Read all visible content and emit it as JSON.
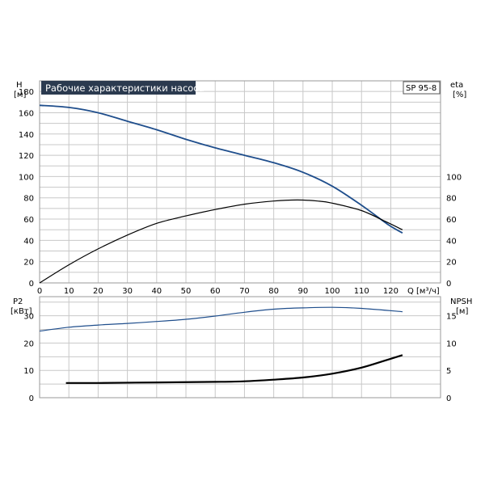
{
  "chart_data": [
    {
      "type": "line",
      "title": "Рабочие характеристики насоса",
      "model": "SP 95-8",
      "left_axis": {
        "label": "H",
        "unit": "[м]",
        "ticks": [
          0,
          20,
          40,
          60,
          80,
          100,
          120,
          140,
          160,
          180
        ],
        "ylim": [
          0,
          190
        ]
      },
      "right_axis": {
        "label": "eta",
        "unit": "[%]",
        "ticks": [
          0,
          20,
          40,
          60,
          80,
          100
        ],
        "ylim": [
          0,
          190
        ]
      },
      "x_axis": {
        "label": "Q",
        "unit": "[м³/ч]",
        "ticks": [
          0,
          10,
          20,
          30,
          40,
          50,
          60,
          70,
          80,
          90,
          100,
          110,
          120
        ],
        "xlim": [
          0,
          137
        ]
      },
      "grid": true,
      "series": [
        {
          "axis": "left",
          "color": "#1f4e8c",
          "x": [
            0,
            10,
            20,
            30,
            40,
            50,
            60,
            70,
            80,
            90,
            100,
            110,
            119,
            124
          ],
          "y": [
            167,
            165,
            160,
            152,
            144,
            135,
            127,
            120,
            113,
            104,
            91,
            73,
            55,
            47
          ]
        },
        {
          "axis": "right",
          "color": "#000000",
          "x": [
            0,
            10,
            20,
            30,
            40,
            50,
            60,
            70,
            80,
            88,
            95,
            100,
            110,
            118,
            124
          ],
          "y": [
            0,
            17,
            32,
            45,
            56,
            63,
            69,
            74,
            77,
            78,
            77,
            75,
            68,
            58,
            50
          ]
        }
      ]
    },
    {
      "type": "line",
      "left_axis": {
        "label": "P2",
        "unit": "[кВт]",
        "ticks": [
          0,
          10,
          20,
          30
        ],
        "ylim": [
          0,
          37
        ]
      },
      "right_axis": {
        "label": "NPSH",
        "unit": "[м]",
        "ticks": [
          0,
          5,
          10,
          15
        ],
        "ylim": [
          0,
          18.5
        ]
      },
      "x_axis": {
        "xlim": [
          0,
          137
        ]
      },
      "grid": true,
      "series": [
        {
          "axis": "left",
          "color": "#1f4e8c",
          "x": [
            0,
            10,
            20,
            30,
            40,
            50,
            60,
            70,
            80,
            90,
            100,
            110,
            124
          ],
          "y": [
            24.4,
            25.8,
            26.6,
            27.2,
            27.9,
            28.7,
            29.9,
            31.3,
            32.4,
            32.9,
            33.1,
            32.7,
            31.5
          ]
        },
        {
          "axis": "right",
          "color": "#000000",
          "x": [
            9,
            20,
            40,
            60,
            70,
            80,
            90,
            100,
            110,
            118,
            124
          ],
          "y": [
            2.7,
            2.7,
            2.8,
            2.9,
            3.0,
            3.3,
            3.7,
            4.4,
            5.5,
            6.8,
            7.8
          ]
        }
      ]
    }
  ]
}
